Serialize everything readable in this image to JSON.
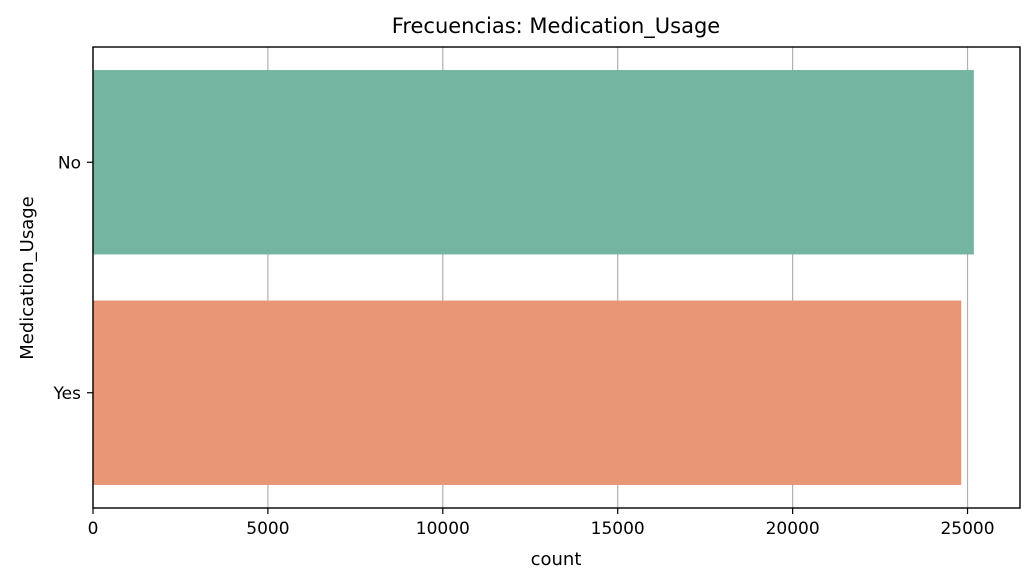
{
  "chart_data": {
    "type": "bar",
    "orientation": "horizontal",
    "title": "Frecuencias: Medication_Usage",
    "xlabel": "count",
    "ylabel": "Medication_Usage",
    "categories": [
      "No",
      "Yes"
    ],
    "values": [
      25180,
      24820
    ],
    "xlim": [
      0,
      26500
    ],
    "xticks": [
      0,
      5000,
      10000,
      15000,
      20000,
      25000
    ],
    "grid": "x",
    "legend": "none",
    "colors": [
      "#73b5a1",
      "#e89675"
    ]
  }
}
